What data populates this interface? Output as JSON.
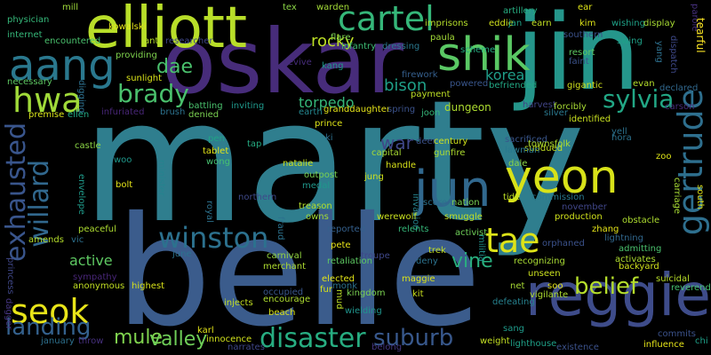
{
  "words": [
    {
      "text": "marty",
      "color": "#2f7e8e"
    },
    {
      "text": "belle",
      "color": "#3b5c8c"
    },
    {
      "text": "jin",
      "color": "#25968b"
    },
    {
      "text": "oskar",
      "color": "#472c7a"
    },
    {
      "text": "elliott",
      "color": "#b8de29"
    },
    {
      "text": "reggie",
      "color": "#3e4c8a"
    },
    {
      "text": "aang",
      "color": "#2a788e"
    },
    {
      "text": "shik",
      "color": "#5ac864"
    },
    {
      "text": "cartel",
      "color": "#35b779"
    },
    {
      "text": "jun",
      "color": "#31688e"
    },
    {
      "text": "yeon",
      "color": "#d8e219"
    },
    {
      "text": "winston",
      "color": "#2c718e"
    },
    {
      "text": "disaster",
      "color": "#27ad81"
    },
    {
      "text": "gertrude",
      "color": "#2e6f8e"
    },
    {
      "text": "seok",
      "color": "#e8e419"
    },
    {
      "text": "hwa",
      "color": "#a0da39"
    },
    {
      "text": "exhausted",
      "color": "#39558c"
    },
    {
      "text": "willard",
      "color": "#31688e"
    },
    {
      "text": "tae",
      "color": "#dde318"
    },
    {
      "text": "brady",
      "color": "#4ac16d"
    },
    {
      "text": "sylvia",
      "color": "#22a785"
    },
    {
      "text": "suburb",
      "color": "#38588c"
    },
    {
      "text": "landing",
      "color": "#34618d"
    },
    {
      "text": "belief",
      "color": "#b5de2b"
    },
    {
      "text": "korean",
      "color": "#1f9e89"
    },
    {
      "text": "dae",
      "color": "#4ac16d"
    },
    {
      "text": "war",
      "color": "#3f4788"
    },
    {
      "text": "bison",
      "color": "#1fa088"
    },
    {
      "text": "vine",
      "color": "#29af7f"
    },
    {
      "text": "mule",
      "color": "#7fd34e"
    },
    {
      "text": "valley",
      "color": "#6ece58"
    },
    {
      "text": "active",
      "color": "#5ec962"
    },
    {
      "text": "rocky",
      "color": "#bddf26"
    },
    {
      "text": "torpedo",
      "color": "#35b779"
    },
    {
      "text": "dungeon",
      "color": "#addc30"
    },
    {
      "text": "injects",
      "color": "#c2df23"
    },
    {
      "text": "mill",
      "color": "#9fda3a"
    },
    {
      "text": "tex",
      "color": "#8bd646"
    },
    {
      "text": "warden",
      "color": "#a2da37"
    },
    {
      "text": "artillery",
      "color": "#27ad81"
    },
    {
      "text": "ear",
      "color": "#dde318"
    },
    {
      "text": "physician",
      "color": "#35b779"
    },
    {
      "text": "kowalski",
      "color": "#e5e419"
    },
    {
      "text": "imprisons",
      "color": "#b5de2b"
    },
    {
      "text": "eddie",
      "color": "#d0e11c"
    },
    {
      "text": "jan",
      "color": "#20a386"
    },
    {
      "text": "earn",
      "color": "#c2df23"
    },
    {
      "text": "kim",
      "color": "#dde318"
    },
    {
      "text": "wishing",
      "color": "#1fa187"
    },
    {
      "text": "display",
      "color": "#a8db34"
    },
    {
      "text": "parole",
      "color": "#46307e"
    },
    {
      "text": "tearful",
      "color": "#fde725"
    },
    {
      "text": "internet",
      "color": "#35b779"
    },
    {
      "text": "encountered",
      "color": "#4ac16d"
    },
    {
      "text": "anti",
      "color": "#b5de2b"
    },
    {
      "text": "researcher",
      "color": "#3f4788"
    },
    {
      "text": "flare",
      "color": "#7ad151"
    },
    {
      "text": "infantry",
      "color": "#3dbc74"
    },
    {
      "text": "dressing",
      "color": "#2a788e"
    },
    {
      "text": "paula",
      "color": "#a2da37"
    },
    {
      "text": "scheme",
      "color": "#25ac82"
    },
    {
      "text": "southern",
      "color": "#3b528b"
    },
    {
      "text": "swing",
      "color": "#1fa188"
    },
    {
      "text": "yang",
      "color": "#2d708e"
    },
    {
      "text": "dispatch",
      "color": "#3e4989"
    },
    {
      "text": "providing",
      "color": "#7fd34e"
    },
    {
      "text": "revive",
      "color": "#472d7b"
    },
    {
      "text": "kang",
      "color": "#1f9a8a"
    },
    {
      "text": "necessary",
      "color": "#5ec962"
    },
    {
      "text": "sunlight",
      "color": "#d8e219"
    },
    {
      "text": "firework",
      "color": "#355f8d"
    },
    {
      "text": "powered",
      "color": "#39568c"
    },
    {
      "text": "befriended",
      "color": "#22a884"
    },
    {
      "text": "resort",
      "color": "#5ec962"
    },
    {
      "text": "faint",
      "color": "#3b528b"
    },
    {
      "text": "evan",
      "color": "#b5de2b"
    },
    {
      "text": "gigantic",
      "color": "#d0e11c"
    },
    {
      "text": "declared",
      "color": "#31688e"
    },
    {
      "text": "digging",
      "color": "#2d708e"
    },
    {
      "text": "premise",
      "color": "#d8e219"
    },
    {
      "text": "ellen",
      "color": "#22a884"
    },
    {
      "text": "infuriated",
      "color": "#482677"
    },
    {
      "text": "brush",
      "color": "#2c728e"
    },
    {
      "text": "battling",
      "color": "#4ac16d"
    },
    {
      "text": "inviting",
      "color": "#1f988b"
    },
    {
      "text": "denied",
      "color": "#7ad151"
    },
    {
      "text": "earth",
      "color": "#24868e"
    },
    {
      "text": "granddaughter",
      "color": "#e5e419"
    },
    {
      "text": "spring",
      "color": "#3b528b"
    },
    {
      "text": "joon",
      "color": "#35b779"
    },
    {
      "text": "payment",
      "color": "#bddf26"
    },
    {
      "text": "harvest",
      "color": "#414487"
    },
    {
      "text": "forcibly",
      "color": "#a8db34"
    },
    {
      "text": "silver",
      "color": "#2a788e"
    },
    {
      "text": "carson",
      "color": "#472c7a"
    },
    {
      "text": "identified",
      "color": "#c8e020"
    },
    {
      "text": "yell",
      "color": "#2c728e"
    },
    {
      "text": "hora",
      "color": "#2c728e"
    },
    {
      "text": "castle",
      "color": "#8bd646"
    },
    {
      "text": "prince",
      "color": "#dde318"
    },
    {
      "text": "ki",
      "color": "#2d708e"
    },
    {
      "text": "deer",
      "color": "#3b528b"
    },
    {
      "text": "century",
      "color": "#d0e11c"
    },
    {
      "text": "gunfire",
      "color": "#addc30"
    },
    {
      "text": "sacrificed",
      "color": "#39568c"
    },
    {
      "text": "subdued",
      "color": "#c2df23"
    },
    {
      "text": "lawman",
      "color": "#2a788e"
    },
    {
      "text": "townsfolk",
      "color": "#addc30"
    },
    {
      "text": "zoo",
      "color": "#dde318"
    },
    {
      "text": "pen",
      "color": "#20a386"
    },
    {
      "text": "tap",
      "color": "#25ac82"
    },
    {
      "text": "tablet",
      "color": "#e2e418"
    },
    {
      "text": "wong",
      "color": "#46c06f"
    },
    {
      "text": "woo",
      "color": "#1f988b"
    },
    {
      "text": "minister",
      "color": "#25838e"
    },
    {
      "text": "natalie",
      "color": "#cae11f"
    },
    {
      "text": "outpost",
      "color": "#7ad151"
    },
    {
      "text": "capital",
      "color": "#a8db34"
    },
    {
      "text": "handle",
      "color": "#d8e219"
    },
    {
      "text": "dale",
      "color": "#8bd646"
    },
    {
      "text": "bolt",
      "color": "#e5e419"
    },
    {
      "text": "jung",
      "color": "#d0e11c"
    },
    {
      "text": "commission",
      "color": "#2a788e"
    },
    {
      "text": "carriage",
      "color": "#a8db34"
    },
    {
      "text": "south",
      "color": "#e2e418"
    },
    {
      "text": "envelope",
      "color": "#1f9a8a"
    },
    {
      "text": "northern",
      "color": "#3e4989"
    },
    {
      "text": "medal",
      "color": "#1f978b"
    },
    {
      "text": "invasion",
      "color": "#25838e"
    },
    {
      "text": "score",
      "color": "#2c728e"
    },
    {
      "text": "nation",
      "color": "#7ad151"
    },
    {
      "text": "tide",
      "color": "#bddf26"
    },
    {
      "text": "november",
      "color": "#404688"
    },
    {
      "text": "obstacle",
      "color": "#addc30"
    },
    {
      "text": "peaceful",
      "color": "#addc30"
    },
    {
      "text": "royal",
      "color": "#2c728e"
    },
    {
      "text": "owns",
      "color": "#a2da37"
    },
    {
      "text": "treason",
      "color": "#b5de2b"
    },
    {
      "text": "werewolf",
      "color": "#c8e020"
    },
    {
      "text": "smuggle",
      "color": "#c2df23"
    },
    {
      "text": "production",
      "color": "#d0e11c"
    },
    {
      "text": "zhang",
      "color": "#e5e419"
    },
    {
      "text": "lightning",
      "color": "#31688e"
    },
    {
      "text": "amends",
      "color": "#b5de2b"
    },
    {
      "text": "vic",
      "color": "#2d708e"
    },
    {
      "text": "fraud",
      "color": "#2c728e"
    },
    {
      "text": "reported",
      "color": "#35608d"
    },
    {
      "text": "relents",
      "color": "#35b779"
    },
    {
      "text": "activist",
      "color": "#6ece58"
    },
    {
      "text": "militia",
      "color": "#21918c"
    },
    {
      "text": "orphaned",
      "color": "#3b528b"
    },
    {
      "text": "admitting",
      "color": "#4ac16d"
    },
    {
      "text": "activates",
      "color": "#addc30"
    },
    {
      "text": "june",
      "color": "#2c728e"
    },
    {
      "text": "carnival",
      "color": "#95d840"
    },
    {
      "text": "pete",
      "color": "#e8e419"
    },
    {
      "text": "troupe",
      "color": "#3f4788"
    },
    {
      "text": "trek",
      "color": "#c2df23"
    },
    {
      "text": "deny",
      "color": "#2c728e"
    },
    {
      "text": "recognizing",
      "color": "#a8db34"
    },
    {
      "text": "backyard",
      "color": "#d0e11c"
    },
    {
      "text": "sympathy",
      "color": "#482677"
    },
    {
      "text": "anonymous",
      "color": "#c2df23"
    },
    {
      "text": "merchant",
      "color": "#addc30"
    },
    {
      "text": "retaliation",
      "color": "#5ec962"
    },
    {
      "text": "unseen",
      "color": "#cae11f"
    },
    {
      "text": "suicidal",
      "color": "#b8de29"
    },
    {
      "text": "princess",
      "color": "#3f4788"
    },
    {
      "text": "highest",
      "color": "#d8e219"
    },
    {
      "text": "occupied",
      "color": "#39568c"
    },
    {
      "text": "elected",
      "color": "#e2e418"
    },
    {
      "text": "maggie",
      "color": "#dde318"
    },
    {
      "text": "net",
      "color": "#a8db34"
    },
    {
      "text": "soo",
      "color": "#e5e419"
    },
    {
      "text": "reverend",
      "color": "#46c06f"
    },
    {
      "text": "dagger",
      "color": "#453581"
    },
    {
      "text": "fur",
      "color": "#d8e219"
    },
    {
      "text": "encourage",
      "color": "#addc30"
    },
    {
      "text": "kingdom",
      "color": "#7ad151"
    },
    {
      "text": "kit",
      "color": "#cae11f"
    },
    {
      "text": "vigilante",
      "color": "#addc30"
    },
    {
      "text": "monk",
      "color": "#2c728e"
    },
    {
      "text": "mud",
      "color": "#bddf26"
    },
    {
      "text": "defeating",
      "color": "#26818e"
    },
    {
      "text": "beach",
      "color": "#d8e219"
    },
    {
      "text": "wielding",
      "color": "#1f948c"
    },
    {
      "text": "commits",
      "color": "#3b528b"
    },
    {
      "text": "karl",
      "color": "#e2e418"
    },
    {
      "text": "sang",
      "color": "#1f9a8a"
    },
    {
      "text": "innocence",
      "color": "#d0e11c"
    },
    {
      "text": "weight",
      "color": "#c2df23"
    },
    {
      "text": "influence",
      "color": "#e5e419"
    },
    {
      "text": "chi",
      "color": "#1fa088"
    },
    {
      "text": "january",
      "color": "#2d708e"
    },
    {
      "text": "throw",
      "color": "#46307e"
    },
    {
      "text": "narrates",
      "color": "#3f4788"
    },
    {
      "text": "belong",
      "color": "#453781"
    },
    {
      "text": "lighthouse",
      "color": "#1fa188"
    },
    {
      "text": "existence",
      "color": "#3b528b"
    }
  ]
}
